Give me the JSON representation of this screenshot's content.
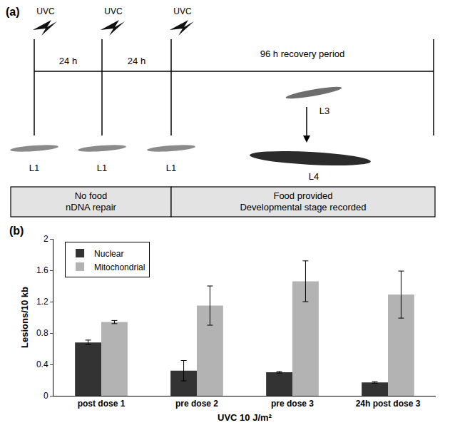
{
  "diagram": {
    "label": "(a)",
    "doses": [
      "UVC",
      "UVC",
      "UVC"
    ],
    "intervals": [
      "24 h",
      "24 h"
    ],
    "recovery": "96 h recovery period",
    "l1": [
      "L1",
      "L1",
      "L1"
    ],
    "l3": "L3",
    "l4": "L4",
    "boxes": [
      [
        "No food",
        "nDNA repair"
      ],
      [
        "Food provided",
        "Developmental stage recorded"
      ]
    ]
  },
  "chart_data": {
    "type": "bar",
    "annotations": [
      "(b)"
    ],
    "categories": [
      "post dose 1",
      "pre dose 2",
      "pre dose 3",
      "24h post dose 3"
    ],
    "series": [
      {
        "name": "Nuclear",
        "color": "#333333",
        "values": [
          0.68,
          0.32,
          0.3,
          0.17
        ],
        "errors": [
          0.03,
          0.13,
          0.01,
          0.01
        ]
      },
      {
        "name": "Mitochondrial",
        "color": "#b3b3b3",
        "values": [
          0.94,
          1.15,
          1.46,
          1.29
        ],
        "errors": [
          0.02,
          0.25,
          0.26,
          0.3
        ]
      }
    ],
    "x_label": "UVC 10 J/m²",
    "y_label": "Lesions/10 kb",
    "ylim": [
      0,
      2
    ],
    "yticks": [
      0,
      0.4,
      0.8,
      1.2,
      1.6,
      2
    ],
    "grid": false,
    "legend": "top-left"
  }
}
